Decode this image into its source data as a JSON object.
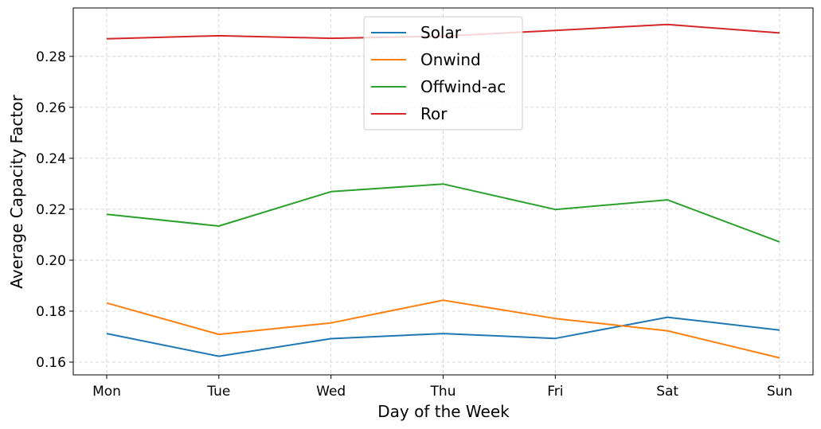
{
  "chart_data": {
    "type": "line",
    "title": "",
    "xlabel": "Day of the Week",
    "ylabel": "Average Capacity Factor",
    "categories": [
      "Mon",
      "Tue",
      "Wed",
      "Thu",
      "Fri",
      "Sat",
      "Sun"
    ],
    "ylim": [
      0.155,
      0.299
    ],
    "yticks": [
      0.16,
      0.18,
      0.2,
      0.22,
      0.24,
      0.26,
      0.28
    ],
    "ytick_labels": [
      "0.16",
      "0.18",
      "0.20",
      "0.22",
      "0.24",
      "0.26",
      "0.28"
    ],
    "grid": true,
    "legend_position": "top-center",
    "series": [
      {
        "name": "Solar",
        "color": "#1f77b4",
        "values": [
          0.1712,
          0.1623,
          0.1692,
          0.1712,
          0.1693,
          0.1776,
          0.1726
        ]
      },
      {
        "name": "Onwind",
        "color": "#ff7f0e",
        "values": [
          0.1832,
          0.1709,
          0.1754,
          0.1843,
          0.1771,
          0.1723,
          0.1617
        ]
      },
      {
        "name": "Offwind-ac",
        "color": "#2ca02c",
        "values": [
          0.218,
          0.2134,
          0.2269,
          0.2299,
          0.2199,
          0.2237,
          0.2072
        ]
      },
      {
        "name": "Ror",
        "color": "#d62728",
        "values": [
          0.2869,
          0.2881,
          0.2871,
          0.2879,
          0.2902,
          0.2925,
          0.2892
        ]
      }
    ]
  }
}
